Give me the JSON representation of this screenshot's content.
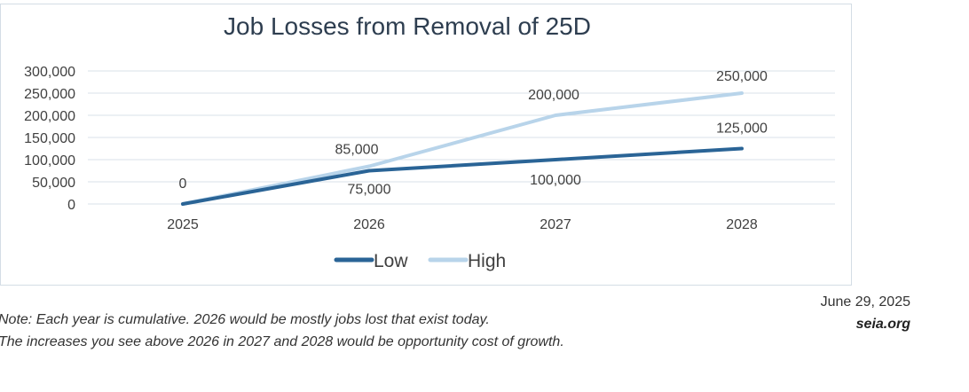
{
  "chart_data": {
    "type": "line",
    "title": "Job Losses from Removal of 25D",
    "categories": [
      "2025",
      "2026",
      "2027",
      "2028"
    ],
    "series": [
      {
        "name": "Low",
        "values": [
          0,
          75000,
          100000,
          125000
        ],
        "labels": [
          "0",
          "75,000",
          "100,000",
          "125,000"
        ],
        "color": "#2a6496"
      },
      {
        "name": "High",
        "values": [
          0,
          85000,
          200000,
          250000
        ],
        "labels": [
          "0",
          "85,000",
          "200,000",
          "250,000"
        ],
        "color": "#b8d4ea"
      }
    ],
    "ylim": [
      0,
      300000
    ],
    "yticks": [
      0,
      50000,
      100000,
      150000,
      200000,
      250000,
      300000
    ],
    "ytick_labels": [
      "0",
      "50,000",
      "100,000",
      "150,000",
      "200,000",
      "250,000",
      "300,000"
    ],
    "grid": true,
    "legend_position": "bottom"
  },
  "footer": {
    "date": "June 29, 2025",
    "site": "seia.org",
    "note_line_1": "Note: Each year is cumulative. 2026 would be mostly jobs lost that exist today.",
    "note_line_2": "The increases you see above 2026 in 2027 and 2028 would be opportunity cost of growth."
  }
}
